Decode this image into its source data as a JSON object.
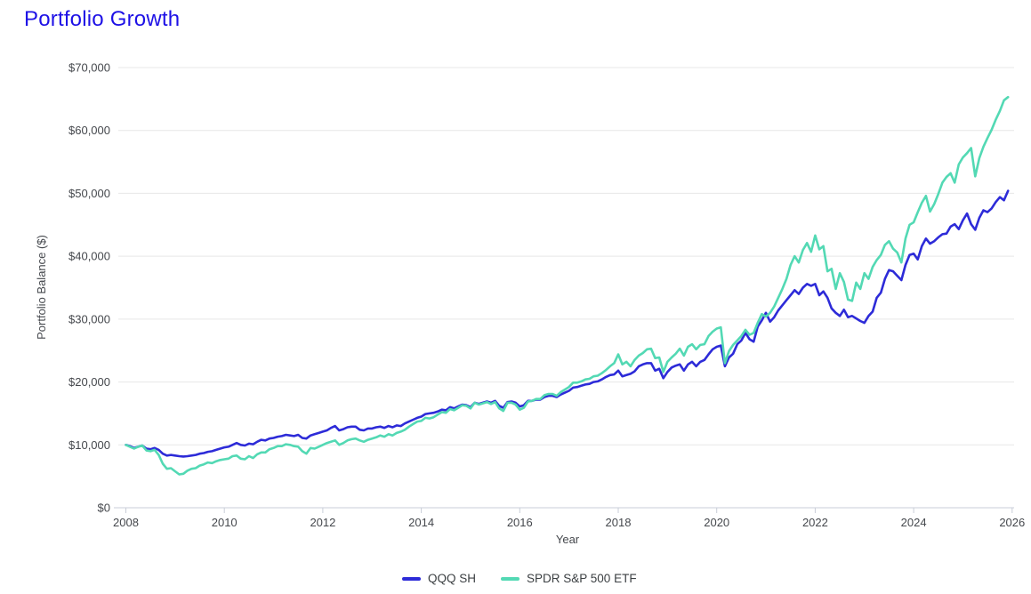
{
  "page": {
    "title": "Portfolio Growth",
    "title_color": "#1e11e6",
    "background_color": "#ffffff"
  },
  "chart_data": {
    "type": "line",
    "title": "Portfolio Growth",
    "xlabel": "Year",
    "ylabel": "Portfolio Balance ($)",
    "grid": "horizontal",
    "legend_position": "bottom-center",
    "x_start_year": 2008,
    "x_step_years": 0.0833333,
    "x_ticks": [
      2008,
      2010,
      2012,
      2014,
      2016,
      2018,
      2020,
      2022,
      2024,
      2026
    ],
    "x_tick_labels": [
      "2008",
      "2010",
      "2012",
      "2014",
      "2016",
      "2018",
      "2020",
      "2022",
      "2024",
      "2026"
    ],
    "ylim": [
      0,
      70000
    ],
    "y_ticks": [
      0,
      10000,
      20000,
      30000,
      40000,
      50000,
      60000,
      70000
    ],
    "y_tick_labels": [
      "$0",
      "$10,000",
      "$20,000",
      "$30,000",
      "$40,000",
      "$50,000",
      "$60,000",
      "$70,000"
    ],
    "axis_text_color": "#45484d",
    "gridline_color": "#e7e7e7",
    "baseline_color": "#c9ced8",
    "series": [
      {
        "name": "QQQ SH",
        "color": "#2d2bd8",
        "values": [
          10000,
          9800,
          9500,
          9700,
          9900,
          9400,
          9300,
          9500,
          9200,
          8600,
          8300,
          8400,
          8300,
          8200,
          8150,
          8200,
          8300,
          8400,
          8600,
          8700,
          8900,
          9000,
          9200,
          9400,
          9600,
          9700,
          10000,
          10300,
          10000,
          9900,
          10200,
          10100,
          10500,
          10800,
          10700,
          11000,
          11100,
          11300,
          11400,
          11600,
          11500,
          11400,
          11600,
          11100,
          11000,
          11500,
          11700,
          11900,
          12100,
          12300,
          12700,
          13000,
          12300,
          12500,
          12800,
          12900,
          12900,
          12400,
          12300,
          12600,
          12600,
          12800,
          12900,
          12700,
          13000,
          12800,
          13100,
          13000,
          13400,
          13700,
          14000,
          14300,
          14500,
          14900,
          15000,
          15100,
          15300,
          15600,
          15500,
          16000,
          15800,
          16100,
          16400,
          16300,
          16000,
          16700,
          16500,
          16700,
          16900,
          16700,
          17000,
          16200,
          15900,
          16800,
          16900,
          16700,
          16100,
          16300,
          17000,
          17000,
          17200,
          17200,
          17600,
          17800,
          17800,
          17600,
          18000,
          18300,
          18600,
          19100,
          19200,
          19400,
          19600,
          19700,
          20000,
          20100,
          20400,
          20800,
          21100,
          21200,
          21800,
          20900,
          21100,
          21300,
          21700,
          22500,
          22800,
          23000,
          23000,
          21800,
          22100,
          20600,
          21600,
          22300,
          22600,
          22800,
          21800,
          22800,
          23200,
          22500,
          23200,
          23500,
          24400,
          25200,
          25600,
          25800,
          22500,
          23900,
          24500,
          26000,
          26600,
          27800,
          26800,
          26400,
          28800,
          29800,
          31000,
          29600,
          30300,
          31400,
          32200,
          33000,
          33800,
          34600,
          34000,
          35000,
          35600,
          35300,
          35600,
          33800,
          34400,
          33400,
          31700,
          31000,
          30500,
          31500,
          30300,
          30500,
          30100,
          29700,
          29400,
          30500,
          31200,
          33400,
          34200,
          36400,
          37800,
          37600,
          36900,
          36200,
          38600,
          40200,
          40400,
          39500,
          41600,
          42800,
          42000,
          42400,
          43000,
          43500,
          43600,
          44700,
          45100,
          44300,
          45700,
          46800,
          45100,
          44200,
          46100,
          47300,
          47000,
          47600,
          48600,
          49400,
          48900,
          50400
        ]
      },
      {
        "name": "SPDR S&P 500 ETF",
        "color": "#53d9b4",
        "values": [
          10000,
          9700,
          9400,
          9700,
          9900,
          9100,
          9000,
          9200,
          8400,
          7000,
          6200,
          6300,
          5800,
          5300,
          5400,
          5900,
          6200,
          6300,
          6700,
          6900,
          7200,
          7100,
          7400,
          7600,
          7700,
          7800,
          8200,
          8300,
          7800,
          7700,
          8200,
          7900,
          8500,
          8800,
          8800,
          9300,
          9500,
          9800,
          9800,
          10100,
          10000,
          9800,
          9700,
          9000,
          8600,
          9500,
          9400,
          9700,
          10000,
          10300,
          10500,
          10700,
          10000,
          10300,
          10700,
          10900,
          11000,
          10700,
          10500,
          10800,
          11000,
          11200,
          11500,
          11300,
          11700,
          11500,
          11900,
          12100,
          12400,
          12900,
          13300,
          13700,
          13800,
          14300,
          14200,
          14400,
          14800,
          15200,
          15100,
          15700,
          15500,
          15900,
          16300,
          16200,
          15800,
          16700,
          16400,
          16600,
          16800,
          16500,
          16800,
          15800,
          15400,
          16700,
          16700,
          16400,
          15600,
          15900,
          16900,
          17000,
          17300,
          17300,
          17900,
          18100,
          18100,
          17800,
          18400,
          18800,
          19200,
          19900,
          19900,
          20100,
          20400,
          20500,
          20900,
          21000,
          21400,
          21900,
          22500,
          23000,
          24400,
          22800,
          23200,
          22500,
          23500,
          24200,
          24600,
          25200,
          25300,
          23800,
          23900,
          21600,
          23200,
          23900,
          24500,
          25300,
          24200,
          25600,
          26000,
          25200,
          25900,
          26000,
          27300,
          28000,
          28500,
          28700,
          23000,
          24900,
          25900,
          26600,
          27300,
          28300,
          27500,
          27800,
          29400,
          30800,
          30400,
          31000,
          32000,
          33400,
          34800,
          36400,
          38600,
          40000,
          39000,
          41000,
          42100,
          40700,
          43300,
          41100,
          41600,
          37600,
          38000,
          34800,
          37300,
          35900,
          33100,
          32900,
          35800,
          34800,
          37300,
          36400,
          38300,
          39400,
          40200,
          41800,
          42400,
          41200,
          40600,
          39000,
          42800,
          45000,
          45400,
          47000,
          48500,
          49600,
          47100,
          48300,
          49900,
          51700,
          52600,
          53200,
          51700,
          54600,
          55700,
          56400,
          57200,
          52700,
          55600,
          57400,
          58800,
          60100,
          61700,
          63100,
          64800,
          65300
        ]
      }
    ]
  },
  "legend": {
    "items": [
      {
        "label": "QQQ SH",
        "color": "#2d2bd8"
      },
      {
        "label": "SPDR S&P 500 ETF",
        "color": "#53d9b4"
      }
    ]
  }
}
